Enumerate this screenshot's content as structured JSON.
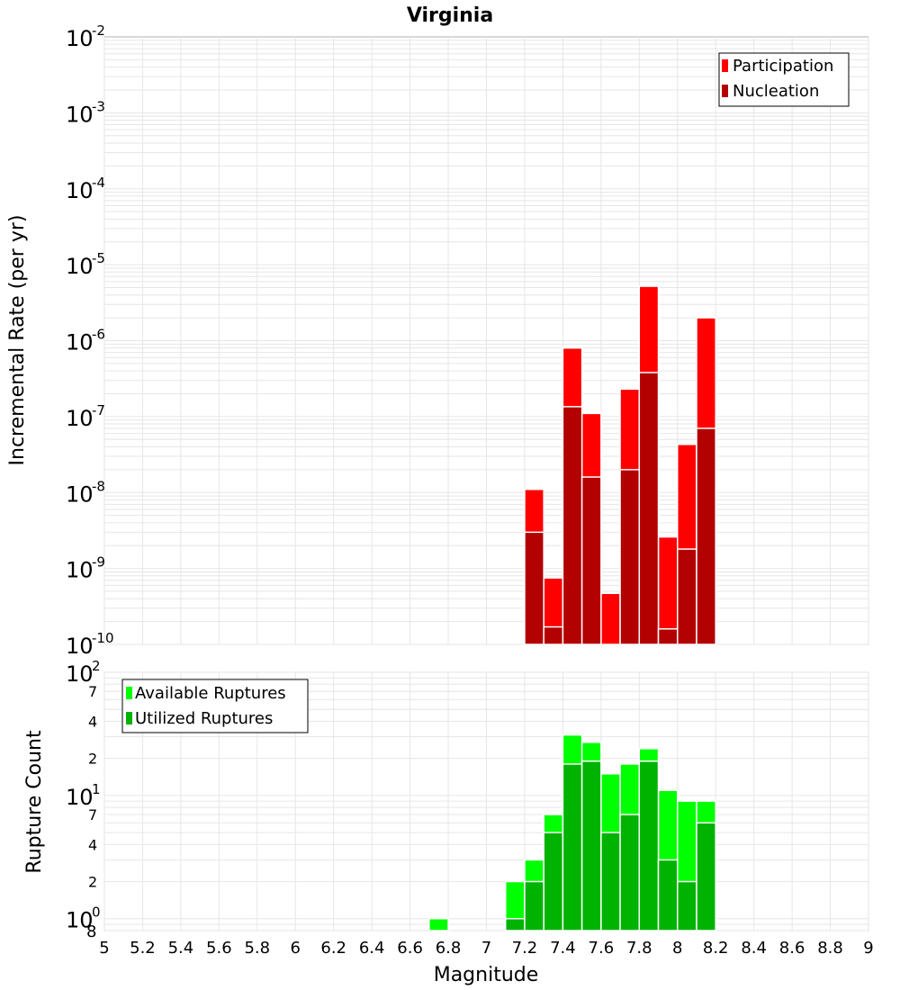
{
  "chart_data": [
    {
      "type": "bar",
      "title": "Virginia",
      "ylabel": "Incremental Rate (per yr)",
      "xlabel": "",
      "yscale": "log",
      "ylim": [
        1e-10,
        0.01
      ],
      "xlim": [
        5,
        9
      ],
      "bar_mode": "overlay",
      "grid": true,
      "legend_position": "top-right",
      "y_major_ticks": [
        {
          "value": 0.01,
          "base": "10",
          "exp": "-2"
        },
        {
          "value": 0.001,
          "base": "10",
          "exp": "-3"
        },
        {
          "value": 0.0001,
          "base": "10",
          "exp": "-4"
        },
        {
          "value": 1e-05,
          "base": "10",
          "exp": "-5"
        },
        {
          "value": 1e-06,
          "base": "10",
          "exp": "-6"
        },
        {
          "value": 1e-07,
          "base": "10",
          "exp": "-7"
        },
        {
          "value": 1e-08,
          "base": "10",
          "exp": "-8"
        },
        {
          "value": 1e-09,
          "base": "10",
          "exp": "-9"
        },
        {
          "value": 1e-10,
          "base": "10",
          "exp": "-10"
        }
      ],
      "x": [
        7.25,
        7.35,
        7.45,
        7.55,
        7.65,
        7.75,
        7.85,
        7.95,
        8.05,
        8.15
      ],
      "series": [
        {
          "name": "Participation",
          "color": "#ff0000",
          "values": [
            1.1e-08,
            7.5e-10,
            8e-07,
            1.1e-07,
            4.7e-10,
            2.3e-07,
            5.2e-06,
            2.6e-09,
            4.3e-08,
            2e-06
          ]
        },
        {
          "name": "Nucleation",
          "color": "#b30000",
          "values": [
            3e-09,
            1.7e-10,
            1.35e-07,
            1.6e-08,
            1e-10,
            2e-08,
            3.8e-07,
            1.6e-10,
            1.8e-09,
            7e-08
          ]
        }
      ]
    },
    {
      "type": "bar",
      "title": "",
      "ylabel": "Rupture Count",
      "xlabel": "Magnitude",
      "yscale": "log",
      "ylim": [
        0.8,
        100
      ],
      "xlim": [
        5,
        9
      ],
      "bar_mode": "overlay",
      "grid": true,
      "legend_position": "top-left",
      "y_major_ticks": [
        {
          "value": 100,
          "base": "10",
          "exp": "2"
        },
        {
          "value": 10,
          "base": "10",
          "exp": "1"
        },
        {
          "value": 1,
          "base": "10",
          "exp": "0"
        }
      ],
      "y_minor_ticks": [
        {
          "value": 70,
          "label": "7"
        },
        {
          "value": 40,
          "label": "4"
        },
        {
          "value": 20,
          "label": "2"
        },
        {
          "value": 7,
          "label": "7"
        },
        {
          "value": 4,
          "label": "4"
        },
        {
          "value": 2,
          "label": "2"
        },
        {
          "value": 0.8,
          "label": "8"
        }
      ],
      "x_ticks": [
        "5",
        "5.2",
        "5.4",
        "5.6",
        "5.8",
        "6",
        "6.2",
        "6.4",
        "6.6",
        "6.8",
        "7",
        "7.2",
        "7.4",
        "7.6",
        "7.8",
        "8",
        "8.2",
        "8.4",
        "8.6",
        "8.8",
        "9"
      ],
      "x": [
        6.75,
        7.15,
        7.25,
        7.35,
        7.45,
        7.55,
        7.65,
        7.75,
        7.85,
        7.95,
        8.05,
        8.15
      ],
      "series": [
        {
          "name": "Available Ruptures",
          "color": "#00ff00",
          "values": [
            1,
            2,
            3,
            7,
            31,
            27,
            15,
            18,
            24,
            11,
            9,
            9
          ]
        },
        {
          "name": "Utilized Ruptures",
          "color": "#00b300",
          "values": [
            0,
            1,
            2,
            5,
            18,
            19,
            5,
            7,
            19,
            3,
            2,
            6
          ]
        }
      ]
    }
  ]
}
